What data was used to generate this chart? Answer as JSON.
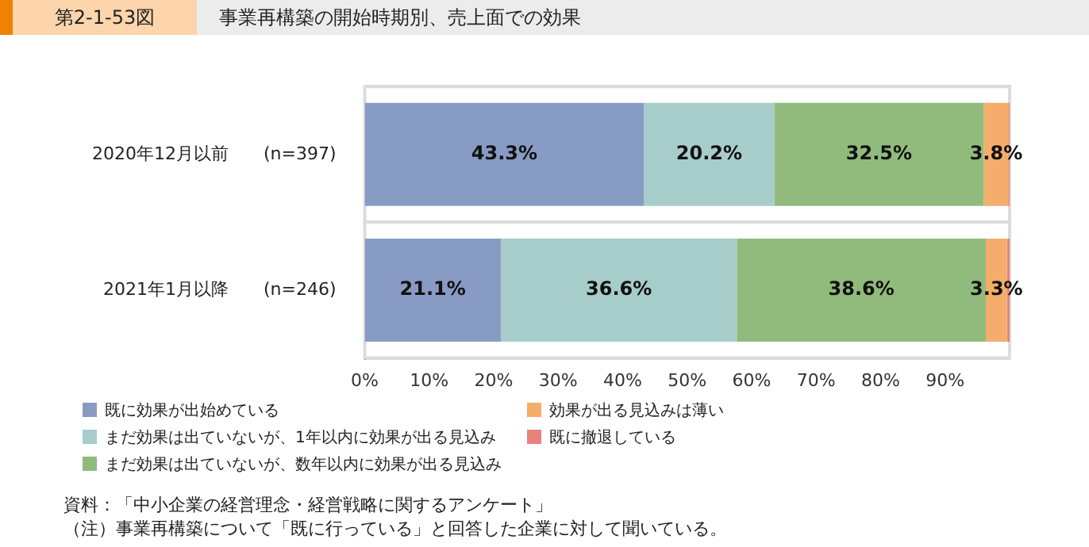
{
  "chart_data": {
    "type": "bar",
    "orientation": "horizontal",
    "stacked": true,
    "subtitle": "第2-1-53図",
    "title": "事業再構築の開始時期別、売上面での効果",
    "categories": [
      "2020年12月以前　　(n=397)",
      "2021年1月以降　　(n=246)"
    ],
    "series": [
      {
        "name": "既に効果が出始めている",
        "color": "#889bc4",
        "values": [
          43.3,
          21.1
        ],
        "value_labels": [
          "43.3%",
          "21.1%"
        ]
      },
      {
        "name": "まだ効果は出ていないが、1年以内に効果が出る見込み",
        "color": "#a6cdc9",
        "values": [
          20.2,
          36.6
        ],
        "value_labels": [
          "20.2%",
          "36.6%"
        ]
      },
      {
        "name": "まだ効果は出ていないが、数年以内に効果が出る見込み",
        "color": "#91bb7c",
        "values": [
          32.5,
          38.6
        ],
        "value_labels": [
          "32.5%",
          "38.6%"
        ]
      },
      {
        "name": "効果が出る見込みは薄い",
        "color": "#f4ad6a",
        "values": [
          3.8,
          3.3
        ],
        "value_labels": [
          "3.8%",
          "3.3%"
        ]
      },
      {
        "name": "既に撤退している",
        "color": "#e8837c",
        "values": [
          0.2,
          0.4
        ],
        "value_labels": [
          null,
          null
        ]
      }
    ],
    "xlim": [
      0,
      100
    ],
    "xticks": [
      {
        "value": 0,
        "label": "0%"
      },
      {
        "value": 10,
        "label": "10%"
      },
      {
        "value": 20,
        "label": "20%"
      },
      {
        "value": 30,
        "label": "30%"
      },
      {
        "value": 40,
        "label": "40%"
      },
      {
        "value": 50,
        "label": "50%"
      },
      {
        "value": 60,
        "label": "60%"
      },
      {
        "value": 70,
        "label": "70%"
      },
      {
        "value": 80,
        "label": "80%"
      },
      {
        "value": 90,
        "label": "90%"
      },
      {
        "value": 100,
        "label": null
      }
    ],
    "grid": "y",
    "legend": "bottom left",
    "annotations": [
      "資料：「中小企業の経営理念・経営戦略に関するアンケート」",
      "（注）事業再構築について「既に行っている」と回答した企業に対して聞いている。"
    ]
  }
}
